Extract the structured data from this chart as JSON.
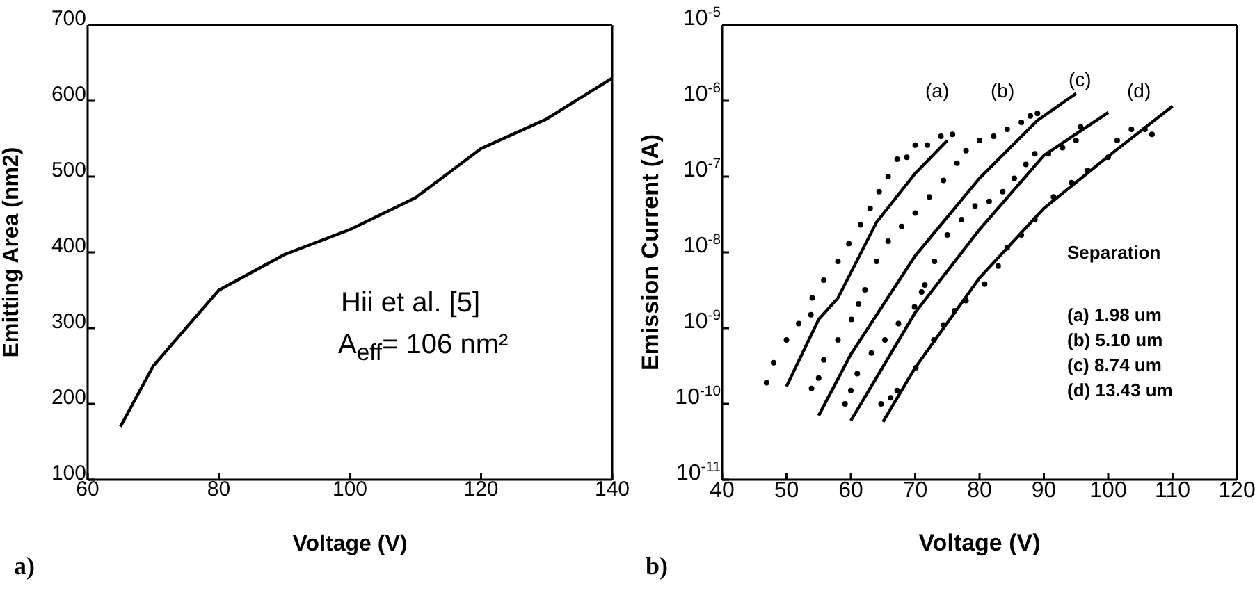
{
  "chart_data": [
    {
      "type": "line",
      "xlabel": "Voltage (V)",
      "ylabel": "Emitting Area (nm2)",
      "xlim": [
        60,
        140
      ],
      "ylim": [
        100,
        700
      ],
      "xticks": [
        60,
        80,
        100,
        120,
        140
      ],
      "yticks": [
        100,
        200,
        300,
        400,
        500,
        600,
        700
      ],
      "line_style": "solid",
      "x": [
        65,
        70,
        80,
        90,
        100,
        110,
        120,
        130,
        140
      ],
      "series": [
        {
          "color": "#000000",
          "values": [
            170,
            250,
            350,
            397,
            430,
            472,
            537,
            576,
            630
          ]
        }
      ],
      "annotations": [
        "Hii et al. [5]",
        "A$_{eff}$= 106 nm²",
        "a)"
      ]
    },
    {
      "type": "line",
      "xlabel": "Voltage (V)",
      "ylabel": "Emission Current (A)",
      "log": "y",
      "xlim": [
        40,
        120
      ],
      "ylim": [
        1e-11,
        1e-05
      ],
      "xticks": [
        40,
        50,
        60,
        70,
        80,
        90,
        100,
        110,
        120
      ],
      "yticks": [
        {
          "value": 1e-11,
          "label": "10$^{-11}$"
        },
        {
          "value": 1e-10,
          "label": "10$^{-10}$"
        },
        {
          "value": 1e-09,
          "label": "10$^{-9}$"
        },
        {
          "value": 1e-08,
          "label": "10$^{-8}$"
        },
        {
          "value": 1e-07,
          "label": "10$^{-7}$"
        },
        {
          "value": 1e-06,
          "label": "10$^{-6}$"
        },
        {
          "value": 1e-05,
          "label": "10$^{-5}$"
        }
      ],
      "line_style": "solid",
      "series": [
        {
          "color": "#000000",
          "x": [
            50,
            55,
            58,
            64,
            70,
            75
          ],
          "values": [
            1.7e-10,
            1.3e-09,
            2.5e-09,
            2.5e-08,
            1.1e-07,
            3e-07
          ]
        },
        {
          "color": "#000000",
          "x": [
            55,
            60,
            70,
            80,
            89,
            95
          ],
          "values": [
            7e-11,
            4.5e-10,
            9e-09,
            9.5e-08,
            5.5e-07,
            1.25e-06
          ]
        },
        {
          "color": "#000000",
          "x": [
            60,
            70,
            80,
            90,
            100
          ],
          "values": [
            6e-11,
            1.6e-09,
            2e-08,
            1.9e-07,
            7e-07
          ]
        },
        {
          "color": "#000000",
          "x": [
            65,
            70,
            80,
            90,
            100,
            110
          ],
          "values": [
            5.8e-11,
            3e-10,
            4.6e-09,
            3.8e-08,
            1.85e-07,
            8.5e-07
          ]
        },
        {
          "type": "scatter",
          "marker": "circle",
          "color": "#000000",
          "x": [
            46.9,
            48,
            50,
            51.9,
            53.8,
            54,
            55.8,
            58,
            59.7,
            61.5,
            63,
            64.4,
            65.8,
            67.2,
            68.7,
            70,
            71.9,
            74,
            75.8
          ],
          "values": [
            1.9e-10,
            3.5e-10,
            7e-10,
            1.15e-09,
            1.5e-09,
            2.5e-09,
            4.3e-09,
            7.6e-09,
            1.3e-08,
            2.3e-08,
            3.8e-08,
            6.3e-08,
            1e-07,
            1.7e-07,
            1.8e-07,
            2.6e-07,
            2.6e-07,
            3.4e-07,
            3.6e-07
          ]
        },
        {
          "type": "scatter",
          "marker": "circle",
          "color": "#000000",
          "x": [
            53.9,
            55,
            55.8,
            58,
            60.1,
            61.2,
            62.2,
            64,
            65.8,
            67.9,
            70,
            72.2,
            74.4,
            76.5,
            77.9,
            80,
            82.2,
            84.3,
            86.5,
            87.9,
            89
          ],
          "values": [
            1.6e-10,
            2.2e-10,
            3.8e-10,
            7e-10,
            1.3e-09,
            2.1e-09,
            3.2e-09,
            7.6e-09,
            1.4e-08,
            2.2e-08,
            3.3e-08,
            5.4e-08,
            8.9e-08,
            1.5e-07,
            2.2e-07,
            3e-07,
            3.4e-07,
            4.2e-07,
            5.2e-07,
            6.3e-07,
            6.8e-07
          ]
        },
        {
          "type": "scatter",
          "marker": "circle",
          "color": "#000000",
          "x": [
            59.1,
            60,
            61,
            63.2,
            65.3,
            67.4,
            69.9,
            71,
            71.5,
            73,
            75,
            77.2,
            79.3,
            81.5,
            83.6,
            85.4,
            87.2,
            88.6,
            90.7,
            92.9,
            95,
            95.7
          ],
          "values": [
            1e-10,
            1.5e-10,
            2.5e-10,
            4.7e-10,
            7e-10,
            1.15e-09,
            1.9e-09,
            3e-09,
            3.7e-09,
            7.6e-09,
            1.7e-08,
            2.7e-08,
            4.1e-08,
            4.7e-08,
            6.3e-08,
            9.5e-08,
            1.45e-07,
            2e-07,
            2e-07,
            2.4e-07,
            3e-07,
            4.5e-07
          ]
        },
        {
          "type": "scatter",
          "marker": "circle",
          "color": "#000000",
          "x": [
            64.7,
            66.2,
            67.2,
            70.1,
            72.9,
            74.4,
            76.1,
            77.9,
            80.8,
            82.9,
            84.3,
            86.5,
            88.6,
            91.5,
            94.3,
            96.8,
            100,
            101.4,
            103.6,
            105.7,
            106.8
          ],
          "values": [
            1e-10,
            1.2e-10,
            1.5e-10,
            3e-10,
            7e-10,
            1.1e-09,
            1.7e-09,
            2.3e-09,
            3.8e-09,
            6.6e-09,
            1.15e-08,
            1.7e-08,
            2.7e-08,
            5.4e-08,
            8.3e-08,
            1.2e-07,
            1.8e-07,
            3e-07,
            4.2e-07,
            4.2e-07,
            3.6e-07
          ]
        }
      ],
      "annotations": [
        "(a)",
        "(b)",
        "(c)",
        "(d)",
        "Separation",
        "(a) 1.98 um",
        "(b) 5.10 um",
        "(c) 8.74 um",
        "(d) 13.43 um",
        "b)"
      ]
    }
  ]
}
